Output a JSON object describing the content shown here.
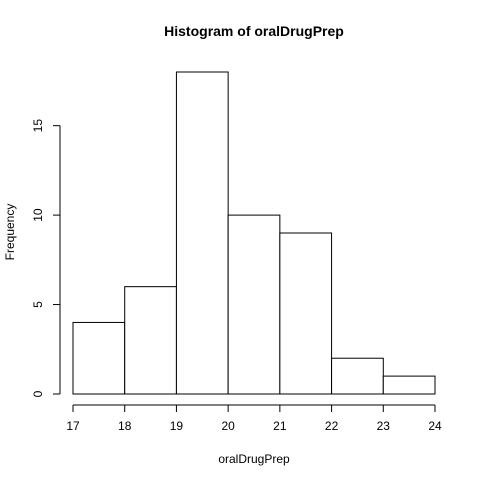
{
  "chart_data": {
    "type": "bar",
    "title": "Histogram of oralDrugPrep",
    "xlabel": "oralDrugPrep",
    "ylabel": "Frequency",
    "bins": [
      {
        "start": 17,
        "end": 18,
        "count": 4
      },
      {
        "start": 18,
        "end": 19,
        "count": 6
      },
      {
        "start": 19,
        "end": 20,
        "count": 18
      },
      {
        "start": 20,
        "end": 21,
        "count": 10
      },
      {
        "start": 21,
        "end": 22,
        "count": 9
      },
      {
        "start": 22,
        "end": 23,
        "count": 2
      },
      {
        "start": 23,
        "end": 24,
        "count": 1
      }
    ],
    "xlim": [
      17,
      24
    ],
    "ylim": [
      0,
      18
    ],
    "x_ticks": [
      "17",
      "18",
      "19",
      "20",
      "21",
      "22",
      "23",
      "24"
    ],
    "y_ticks": [
      "0",
      "5",
      "10",
      "15"
    ],
    "grid": false,
    "colors": {
      "bar_fill": "#ffffff",
      "bar_stroke": "#000000"
    }
  }
}
